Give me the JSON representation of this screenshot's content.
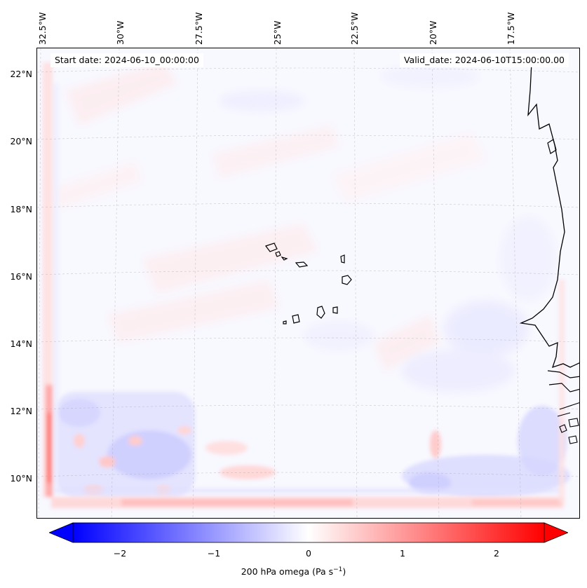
{
  "map": {
    "lon_labels": [
      "32.5°W",
      "30°W",
      "27.5°W",
      "25°W",
      "22.5°W",
      "20°W",
      "17.5°W"
    ],
    "lat_labels": [
      "22°N",
      "20°N",
      "18°N",
      "16°N",
      "14°N",
      "12°N",
      "10°N"
    ],
    "start_date": "Start date: 2024-06-10_00:00:00",
    "valid_date": "Valid_date: 2024-06-10T15:00:00.00",
    "variable": "200 hPa omega",
    "colormap": "bwr",
    "gridlines": true
  },
  "colorbar": {
    "range": [
      -2.75,
      2.75
    ],
    "ticks": [
      "−2",
      "−1",
      "0",
      "1",
      "2"
    ],
    "label": "200 hPa omega (Pa s",
    "label_sup": "−1",
    "label_close": ")",
    "colors": {
      "low": "#0000ff",
      "mid": "#ffffff",
      "high": "#ff0000"
    }
  }
}
